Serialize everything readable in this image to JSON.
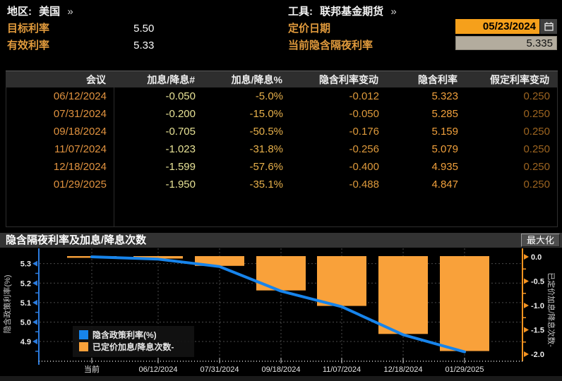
{
  "header": {
    "region_label": "地区:",
    "region_value": "美国",
    "tool_label": "工具:",
    "tool_value": "联邦基金期货",
    "chevron": "»",
    "target_rate_label": "目标利率",
    "target_rate_value": "5.50",
    "effective_rate_label": "有效利率",
    "effective_rate_value": "5.33",
    "pricing_date_label": "定价日期",
    "pricing_date_value": "05/23/2024",
    "current_implied_label": "当前隐含隔夜利率",
    "current_implied_value": "5.335"
  },
  "table": {
    "columns": [
      "会议",
      "加息/降息#",
      "加息/降息%",
      "隐含利率变动",
      "隐含利率",
      "假定利率变动"
    ],
    "rows": [
      [
        "06/12/2024",
        "-0.050",
        "-5.0%",
        "-0.012",
        "5.323",
        "0.250"
      ],
      [
        "07/31/2024",
        "-0.200",
        "-15.0%",
        "-0.050",
        "5.285",
        "0.250"
      ],
      [
        "09/18/2024",
        "-0.705",
        "-50.5%",
        "-0.176",
        "5.159",
        "0.250"
      ],
      [
        "11/07/2024",
        "-1.023",
        "-31.8%",
        "-0.256",
        "5.079",
        "0.250"
      ],
      [
        "12/18/2024",
        "-1.599",
        "-57.6%",
        "-0.400",
        "4.935",
        "0.250"
      ],
      [
        "01/29/2025",
        "-1.950",
        "-35.1%",
        "-0.488",
        "4.847",
        "0.250"
      ]
    ]
  },
  "chart": {
    "title": "隐含隔夜利率及加息/降息次数",
    "maximize_label": "最大化"
  },
  "chart_data": {
    "type": "bar+line",
    "title": "隐含隔夜利率及加息/降息次数",
    "categories": [
      "当前",
      "06/12/2024",
      "07/31/2024",
      "09/18/2024",
      "11/07/2024",
      "12/18/2024",
      "01/29/2025"
    ],
    "series": [
      {
        "name": "隐含政策利率(%)",
        "type": "line",
        "axis": "left",
        "values": [
          5.335,
          5.323,
          5.285,
          5.159,
          5.079,
          4.935,
          4.847
        ]
      },
      {
        "name": "已定价加息/降息次数-",
        "type": "bar",
        "axis": "right",
        "values": [
          0,
          -0.05,
          -0.2,
          -0.705,
          -1.023,
          -1.599,
          -1.95
        ]
      }
    ],
    "left_axis": {
      "label": "隐含政策利率(%)",
      "ticks": [
        5.3,
        5.2,
        5.1,
        5.0,
        4.9
      ],
      "minor_ticks": [
        5.25,
        5.15,
        5.05,
        4.95,
        4.85
      ],
      "top_value": 5.335,
      "bottom_value": 4.835
    },
    "right_axis": {
      "label": "已定价加息/降息次数-",
      "ticks": [
        0.0,
        -0.5,
        -1.0,
        -1.5,
        -2.0
      ],
      "minor_ticks": [
        -0.25,
        -0.75,
        -1.25,
        -1.75
      ],
      "top_value": 0.0,
      "bottom_value": -2.0
    },
    "grid": "dashed",
    "legend_position": "bottom-left"
  },
  "colors": {
    "bar_orange": "#F9A13A",
    "line_blue": "#1784EB",
    "axis_blue": "#2B7BDE",
    "axis_orange": "#F79420",
    "grid": "#4a4a4a",
    "tick_text": "#EDEDED",
    "axis_title_text": "#C8C8C8",
    "dotted_baseline": "#D9D9D9",
    "legend_bg": "#121212"
  }
}
